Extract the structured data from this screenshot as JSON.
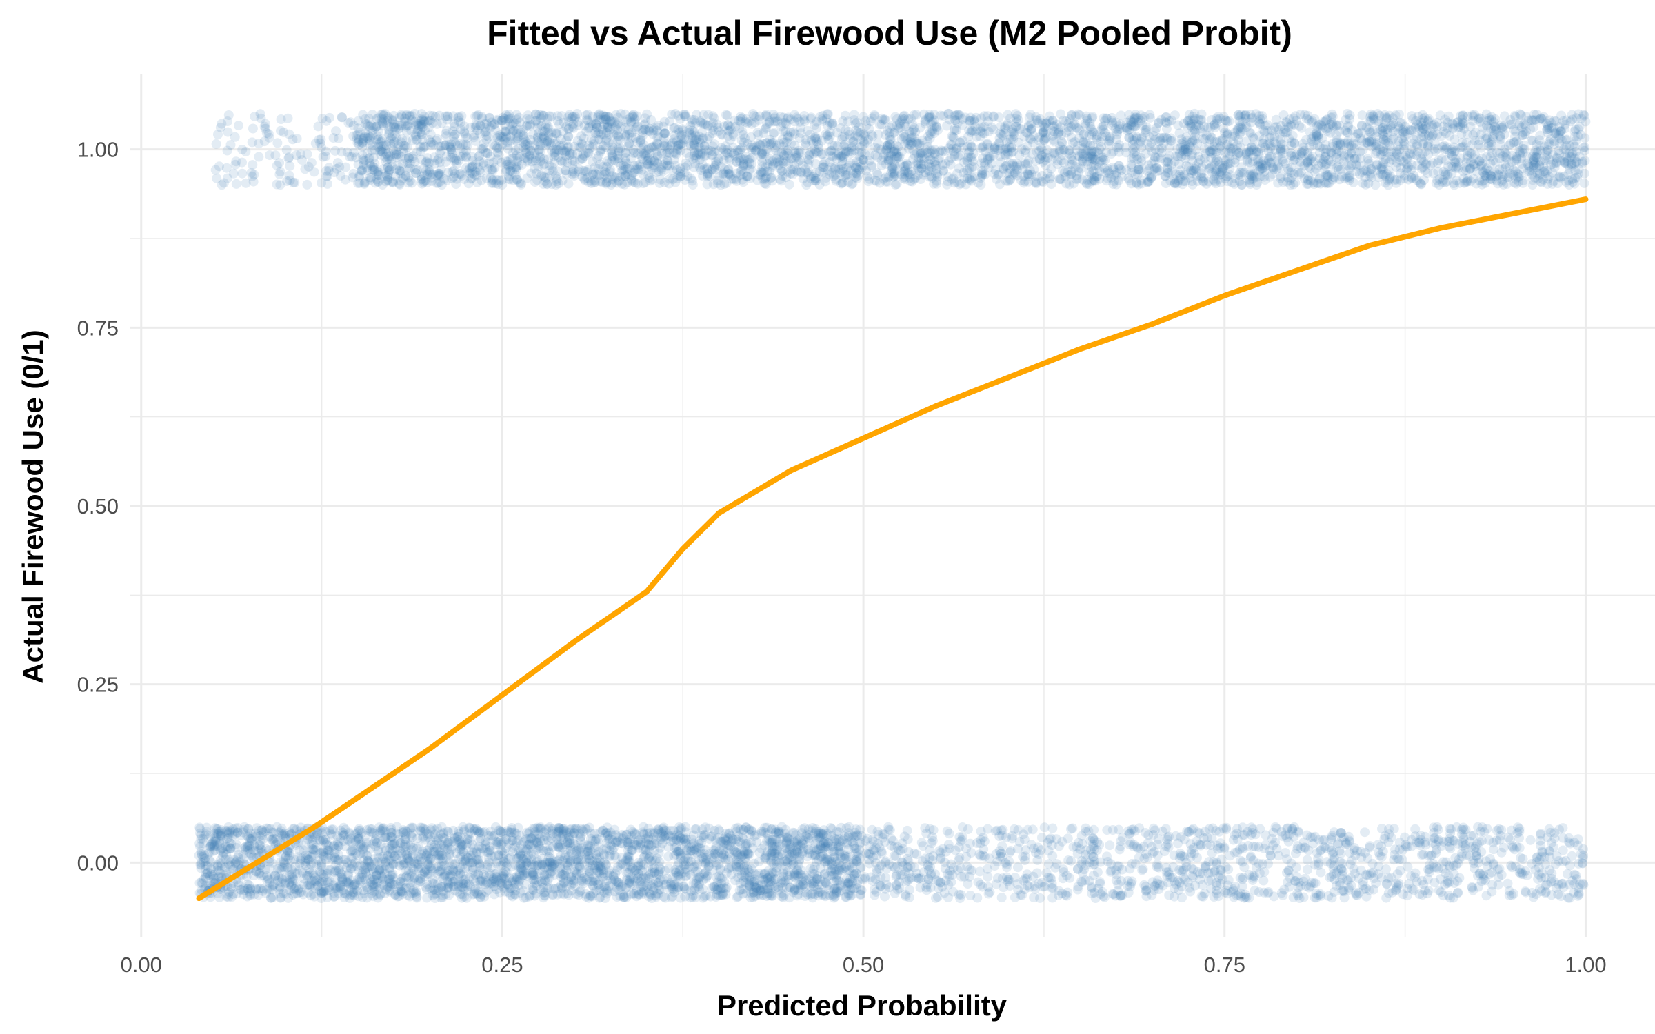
{
  "chart_data": {
    "type": "scatter",
    "title": "Fitted vs Actual Firewood Use (M2 Pooled Probit)",
    "xlabel": "Predicted Probability",
    "ylabel": "Actual Firewood Use (0/1)",
    "xlim": [
      -0.008,
      1.048
    ],
    "ylim": [
      -0.105,
      1.105
    ],
    "x_ticks": [
      "0.00",
      "0.25",
      "0.50",
      "0.75",
      "1.00"
    ],
    "y_ticks": [
      "0.00",
      "0.25",
      "0.50",
      "0.75",
      "1.00"
    ],
    "grid": true,
    "legend": "none",
    "points": {
      "groups": [
        0,
        1
      ],
      "vertical_jitter": 0.05,
      "x_range_y0": [
        0.04,
        1.0
      ],
      "x_range_y1": [
        0.05,
        1.0
      ],
      "color": "#4682B4",
      "alpha": 0.15
    },
    "smooth_line": {
      "color": "#FFA500",
      "x": [
        0.04,
        0.08,
        0.12,
        0.16,
        0.2,
        0.25,
        0.3,
        0.35,
        0.375,
        0.4,
        0.45,
        0.5,
        0.55,
        0.6,
        0.65,
        0.7,
        0.75,
        0.8,
        0.85,
        0.9,
        0.95,
        1.0
      ],
      "y": [
        -0.05,
        0.0,
        0.05,
        0.105,
        0.16,
        0.235,
        0.31,
        0.38,
        0.44,
        0.49,
        0.55,
        0.595,
        0.64,
        0.68,
        0.72,
        0.755,
        0.795,
        0.83,
        0.865,
        0.89,
        0.91,
        0.93
      ]
    }
  }
}
